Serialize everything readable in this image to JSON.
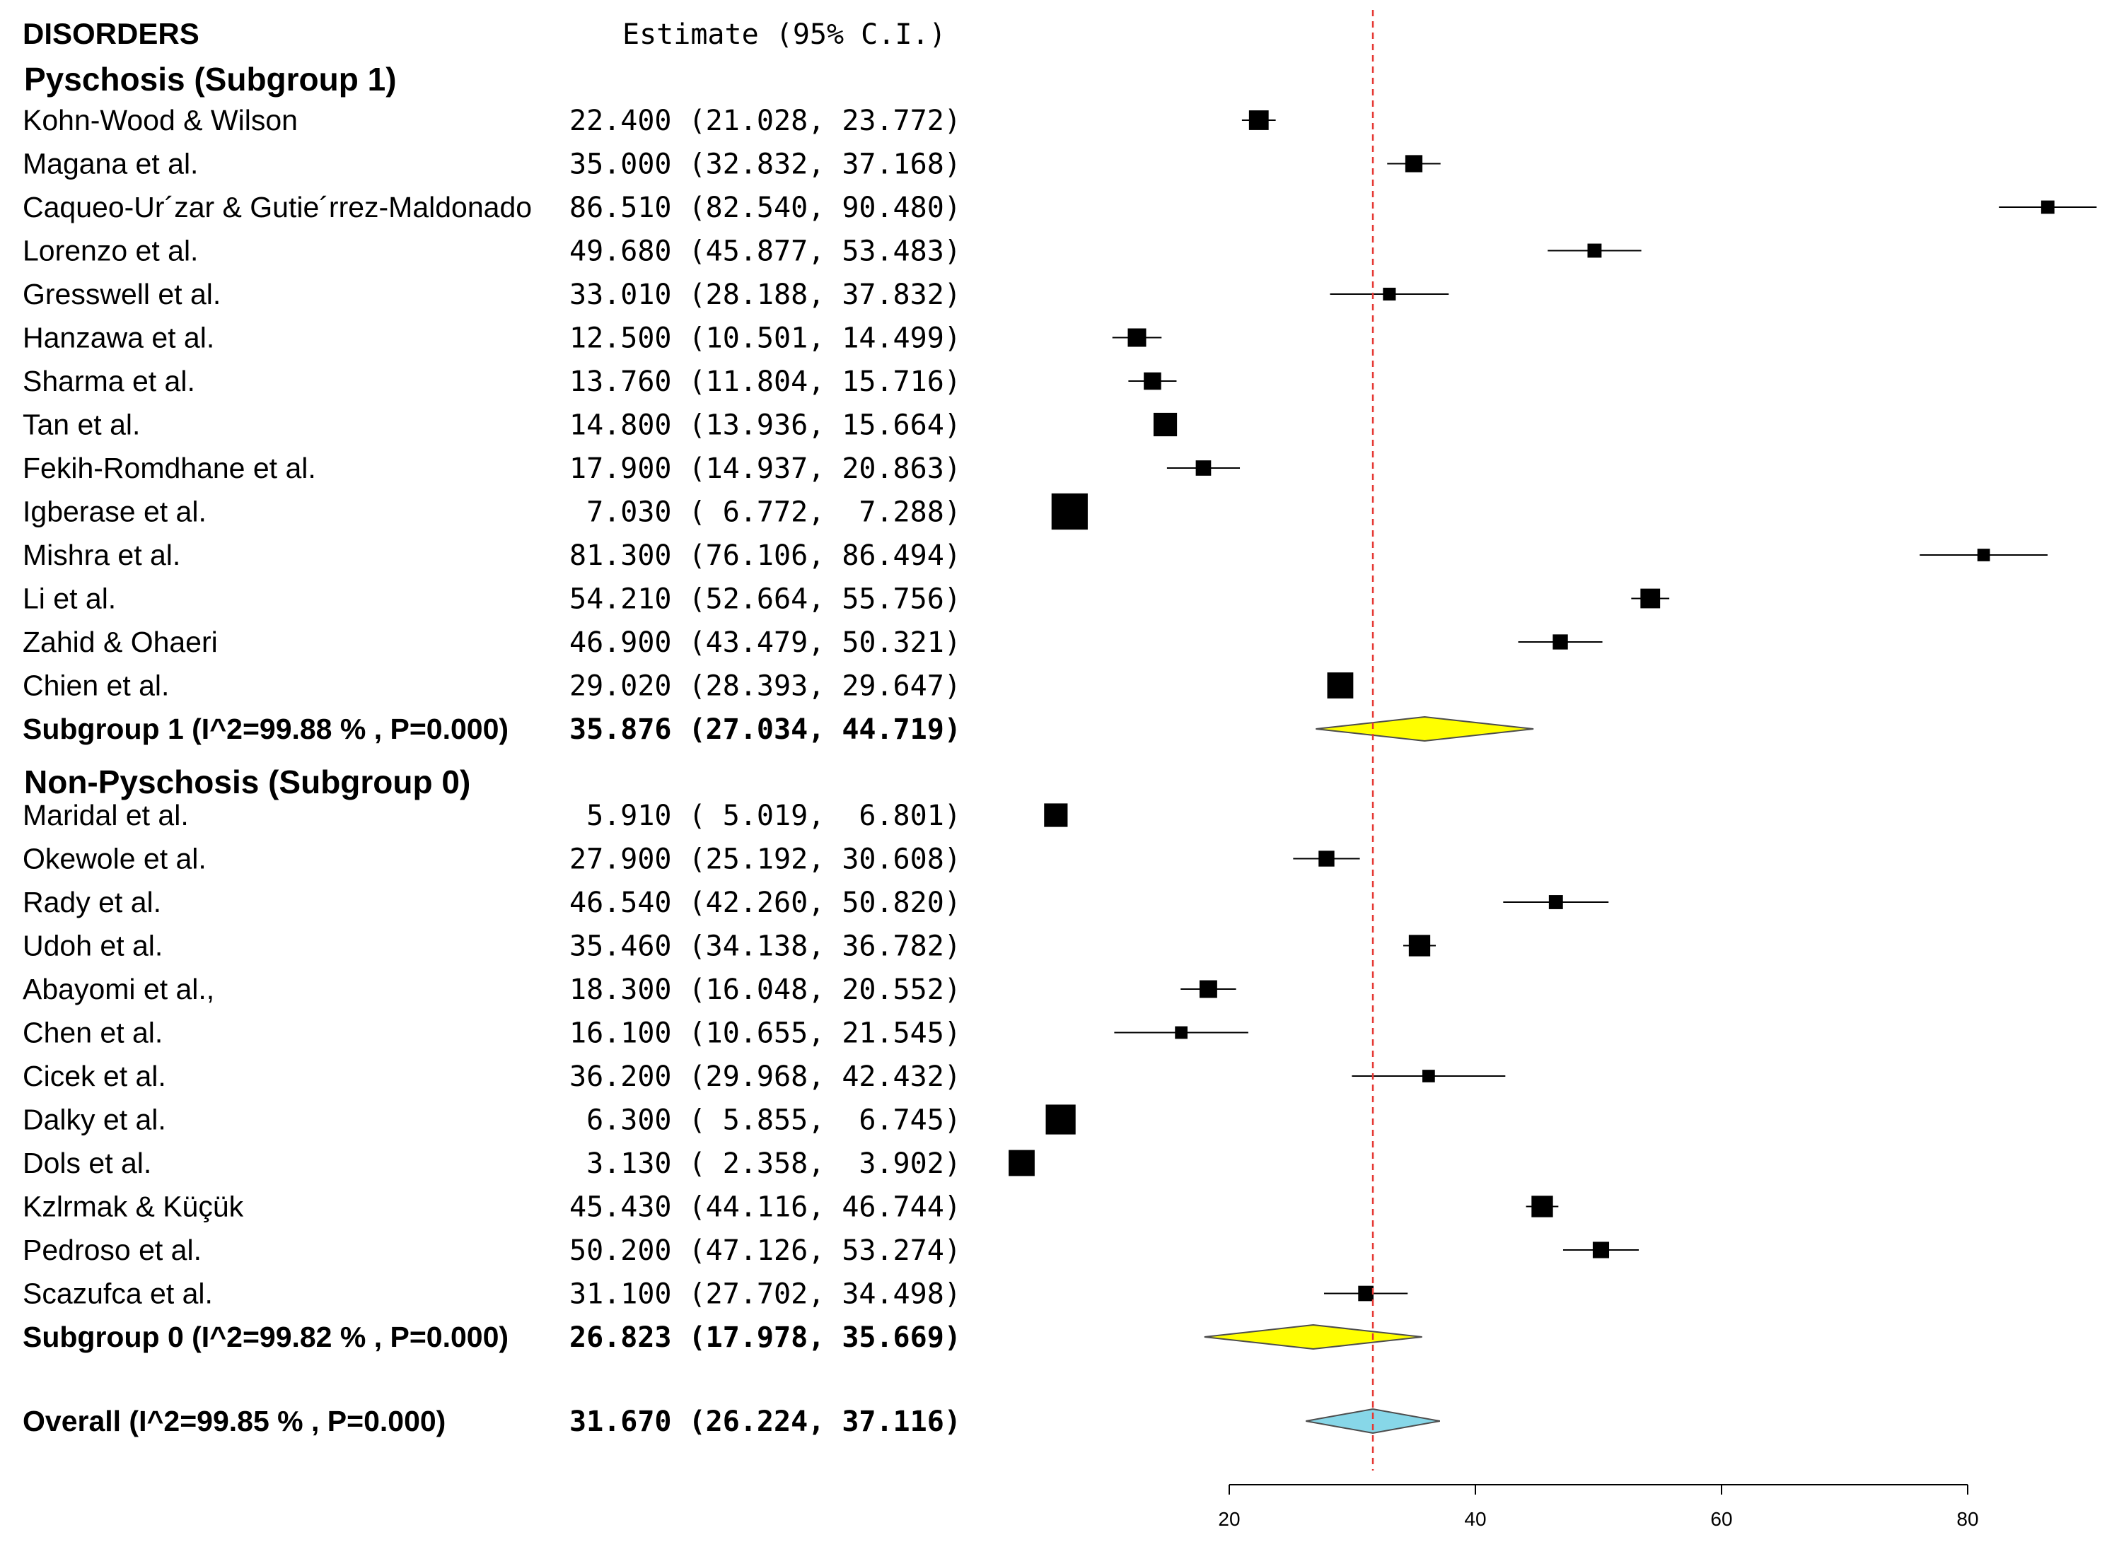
{
  "header": {
    "title": "DISORDERS",
    "estimate_label": "Estimate (95% C.I.)"
  },
  "chart_data": {
    "type": "forest",
    "reference_line": 31.67,
    "xaxis": {
      "ticks": [
        20,
        40,
        60,
        80
      ],
      "range": [
        20,
        80
      ]
    },
    "colors": {
      "subgroup_diamond": "#ffff00",
      "overall_diamond": "#87d7e8",
      "reference_line": "#e53935"
    },
    "groups": [
      {
        "title": "Pyschosis (Subgroup 1)",
        "studies": [
          {
            "name": "Kohn-Wood & Wilson",
            "estimate": 22.4,
            "lower": 21.028,
            "upper": 23.772,
            "text": "22.400 (21.028, 23.772)",
            "weight": 0.55
          },
          {
            "name": "Magana et al.",
            "estimate": 35.0,
            "lower": 32.832,
            "upper": 37.168,
            "text": "35.000 (32.832, 37.168)",
            "weight": 0.45
          },
          {
            "name": "Caqueo-Ur´zar & Gutie´rrez-Maldonado",
            "estimate": 86.51,
            "lower": 82.54,
            "upper": 90.48,
            "text": "86.510 (82.540, 90.480)",
            "weight": 0.3
          },
          {
            "name": "Lorenzo et al.",
            "estimate": 49.68,
            "lower": 45.877,
            "upper": 53.483,
            "text": "49.680 (45.877, 53.483)",
            "weight": 0.33
          },
          {
            "name": "Gresswell et al.",
            "estimate": 33.01,
            "lower": 28.188,
            "upper": 37.832,
            "text": "33.010 (28.188, 37.832)",
            "weight": 0.28
          },
          {
            "name": "Hanzawa et al.",
            "estimate": 12.5,
            "lower": 10.501,
            "upper": 14.499,
            "text": "12.500 (10.501, 14.499)",
            "weight": 0.5
          },
          {
            "name": "Sharma et al.",
            "estimate": 13.76,
            "lower": 11.804,
            "upper": 15.716,
            "text": "13.760 (11.804, 15.716)",
            "weight": 0.46
          },
          {
            "name": "Tan et al.",
            "estimate": 14.8,
            "lower": 13.936,
            "upper": 15.664,
            "text": "14.800 (13.936, 15.664)",
            "weight": 0.7
          },
          {
            "name": "Fekih-Romdhane et al.",
            "estimate": 17.9,
            "lower": 14.937,
            "upper": 20.863,
            "text": "17.900 (14.937, 20.863)",
            "weight": 0.38
          },
          {
            "name": "Igberase et al.",
            "estimate": 7.03,
            "lower": 6.772,
            "upper": 7.288,
            "text": " 7.030 ( 6.772,  7.288)",
            "weight": 1.2
          },
          {
            "name": "Mishra et al.",
            "estimate": 81.3,
            "lower": 76.106,
            "upper": 86.494,
            "text": "81.300 (76.106, 86.494)",
            "weight": 0.27
          },
          {
            "name": "Li et al.",
            "estimate": 54.21,
            "lower": 52.664,
            "upper": 55.756,
            "text": "54.210 (52.664, 55.756)",
            "weight": 0.55
          },
          {
            "name": "Zahid  & Ohaeri",
            "estimate": 46.9,
            "lower": 43.479,
            "upper": 50.321,
            "text": "46.900 (43.479, 50.321)",
            "weight": 0.37
          },
          {
            "name": "Chien et al.",
            "estimate": 29.02,
            "lower": 28.393,
            "upper": 29.647,
            "text": "29.020 (28.393, 29.647)",
            "weight": 0.8
          }
        ],
        "summary": {
          "name": "Subgroup 1 (I^2=99.88 % , P=0.000)",
          "estimate": 35.876,
          "lower": 27.034,
          "upper": 44.719,
          "text": "35.876 (27.034, 44.719)"
        }
      },
      {
        "title": "Non-Pyschosis (Subgroup 0)",
        "studies": [
          {
            "name": "Maridal et al.",
            "estimate": 5.91,
            "lower": 5.019,
            "upper": 6.801,
            "text": " 5.910 ( 5.019,  6.801)",
            "weight": 0.7
          },
          {
            "name": "Okewole et al.",
            "estimate": 27.9,
            "lower": 25.192,
            "upper": 30.608,
            "text": "27.900 (25.192, 30.608)",
            "weight": 0.4
          },
          {
            "name": "Rady et al.",
            "estimate": 46.54,
            "lower": 42.26,
            "upper": 50.82,
            "text": "46.540 (42.260, 50.820)",
            "weight": 0.33
          },
          {
            "name": "Udoh et al.",
            "estimate": 35.46,
            "lower": 34.138,
            "upper": 36.782,
            "text": "35.460 (34.138, 36.782)",
            "weight": 0.62
          },
          {
            "name": "Abayomi et al.,",
            "estimate": 18.3,
            "lower": 16.048,
            "upper": 20.552,
            "text": "18.300 (16.048, 20.552)",
            "weight": 0.47
          },
          {
            "name": "Chen et al.",
            "estimate": 16.1,
            "lower": 10.655,
            "upper": 21.545,
            "text": "16.100 (10.655, 21.545)",
            "weight": 0.27
          },
          {
            "name": "Cicek et al.",
            "estimate": 36.2,
            "lower": 29.968,
            "upper": 42.432,
            "text": "36.200 (29.968, 42.432)",
            "weight": 0.27
          },
          {
            "name": "Dalky et al.",
            "estimate": 6.3,
            "lower": 5.855,
            "upper": 6.745,
            "text": " 6.300 ( 5.855,  6.745)",
            "weight": 0.95
          },
          {
            "name": "Dols et al.",
            "estimate": 3.13,
            "lower": 2.358,
            "upper": 3.902,
            "text": " 3.130 ( 2.358,  3.902)",
            "weight": 0.8
          },
          {
            "name": "Kzlrmak & Küçük",
            "estimate": 45.43,
            "lower": 44.116,
            "upper": 46.744,
            "text": "45.430 (44.116, 46.744)",
            "weight": 0.62
          },
          {
            "name": "Pedroso et al.",
            "estimate": 50.2,
            "lower": 47.126,
            "upper": 53.274,
            "text": "50.200 (47.126, 53.274)",
            "weight": 0.42
          },
          {
            "name": "Scazufca et al.",
            "estimate": 31.1,
            "lower": 27.702,
            "upper": 34.498,
            "text": "31.100 (27.702, 34.498)",
            "weight": 0.38
          }
        ],
        "summary": {
          "name": "Subgroup 0 (I^2=99.82 % , P=0.000)",
          "estimate": 26.823,
          "lower": 17.978,
          "upper": 35.669,
          "text": "26.823 (17.978, 35.669)"
        }
      }
    ],
    "overall": {
      "name": "Overall (I^2=99.85 % , P=0.000)",
      "estimate": 31.67,
      "lower": 26.224,
      "upper": 37.116,
      "text": "31.670 (26.224, 37.116)"
    }
  }
}
